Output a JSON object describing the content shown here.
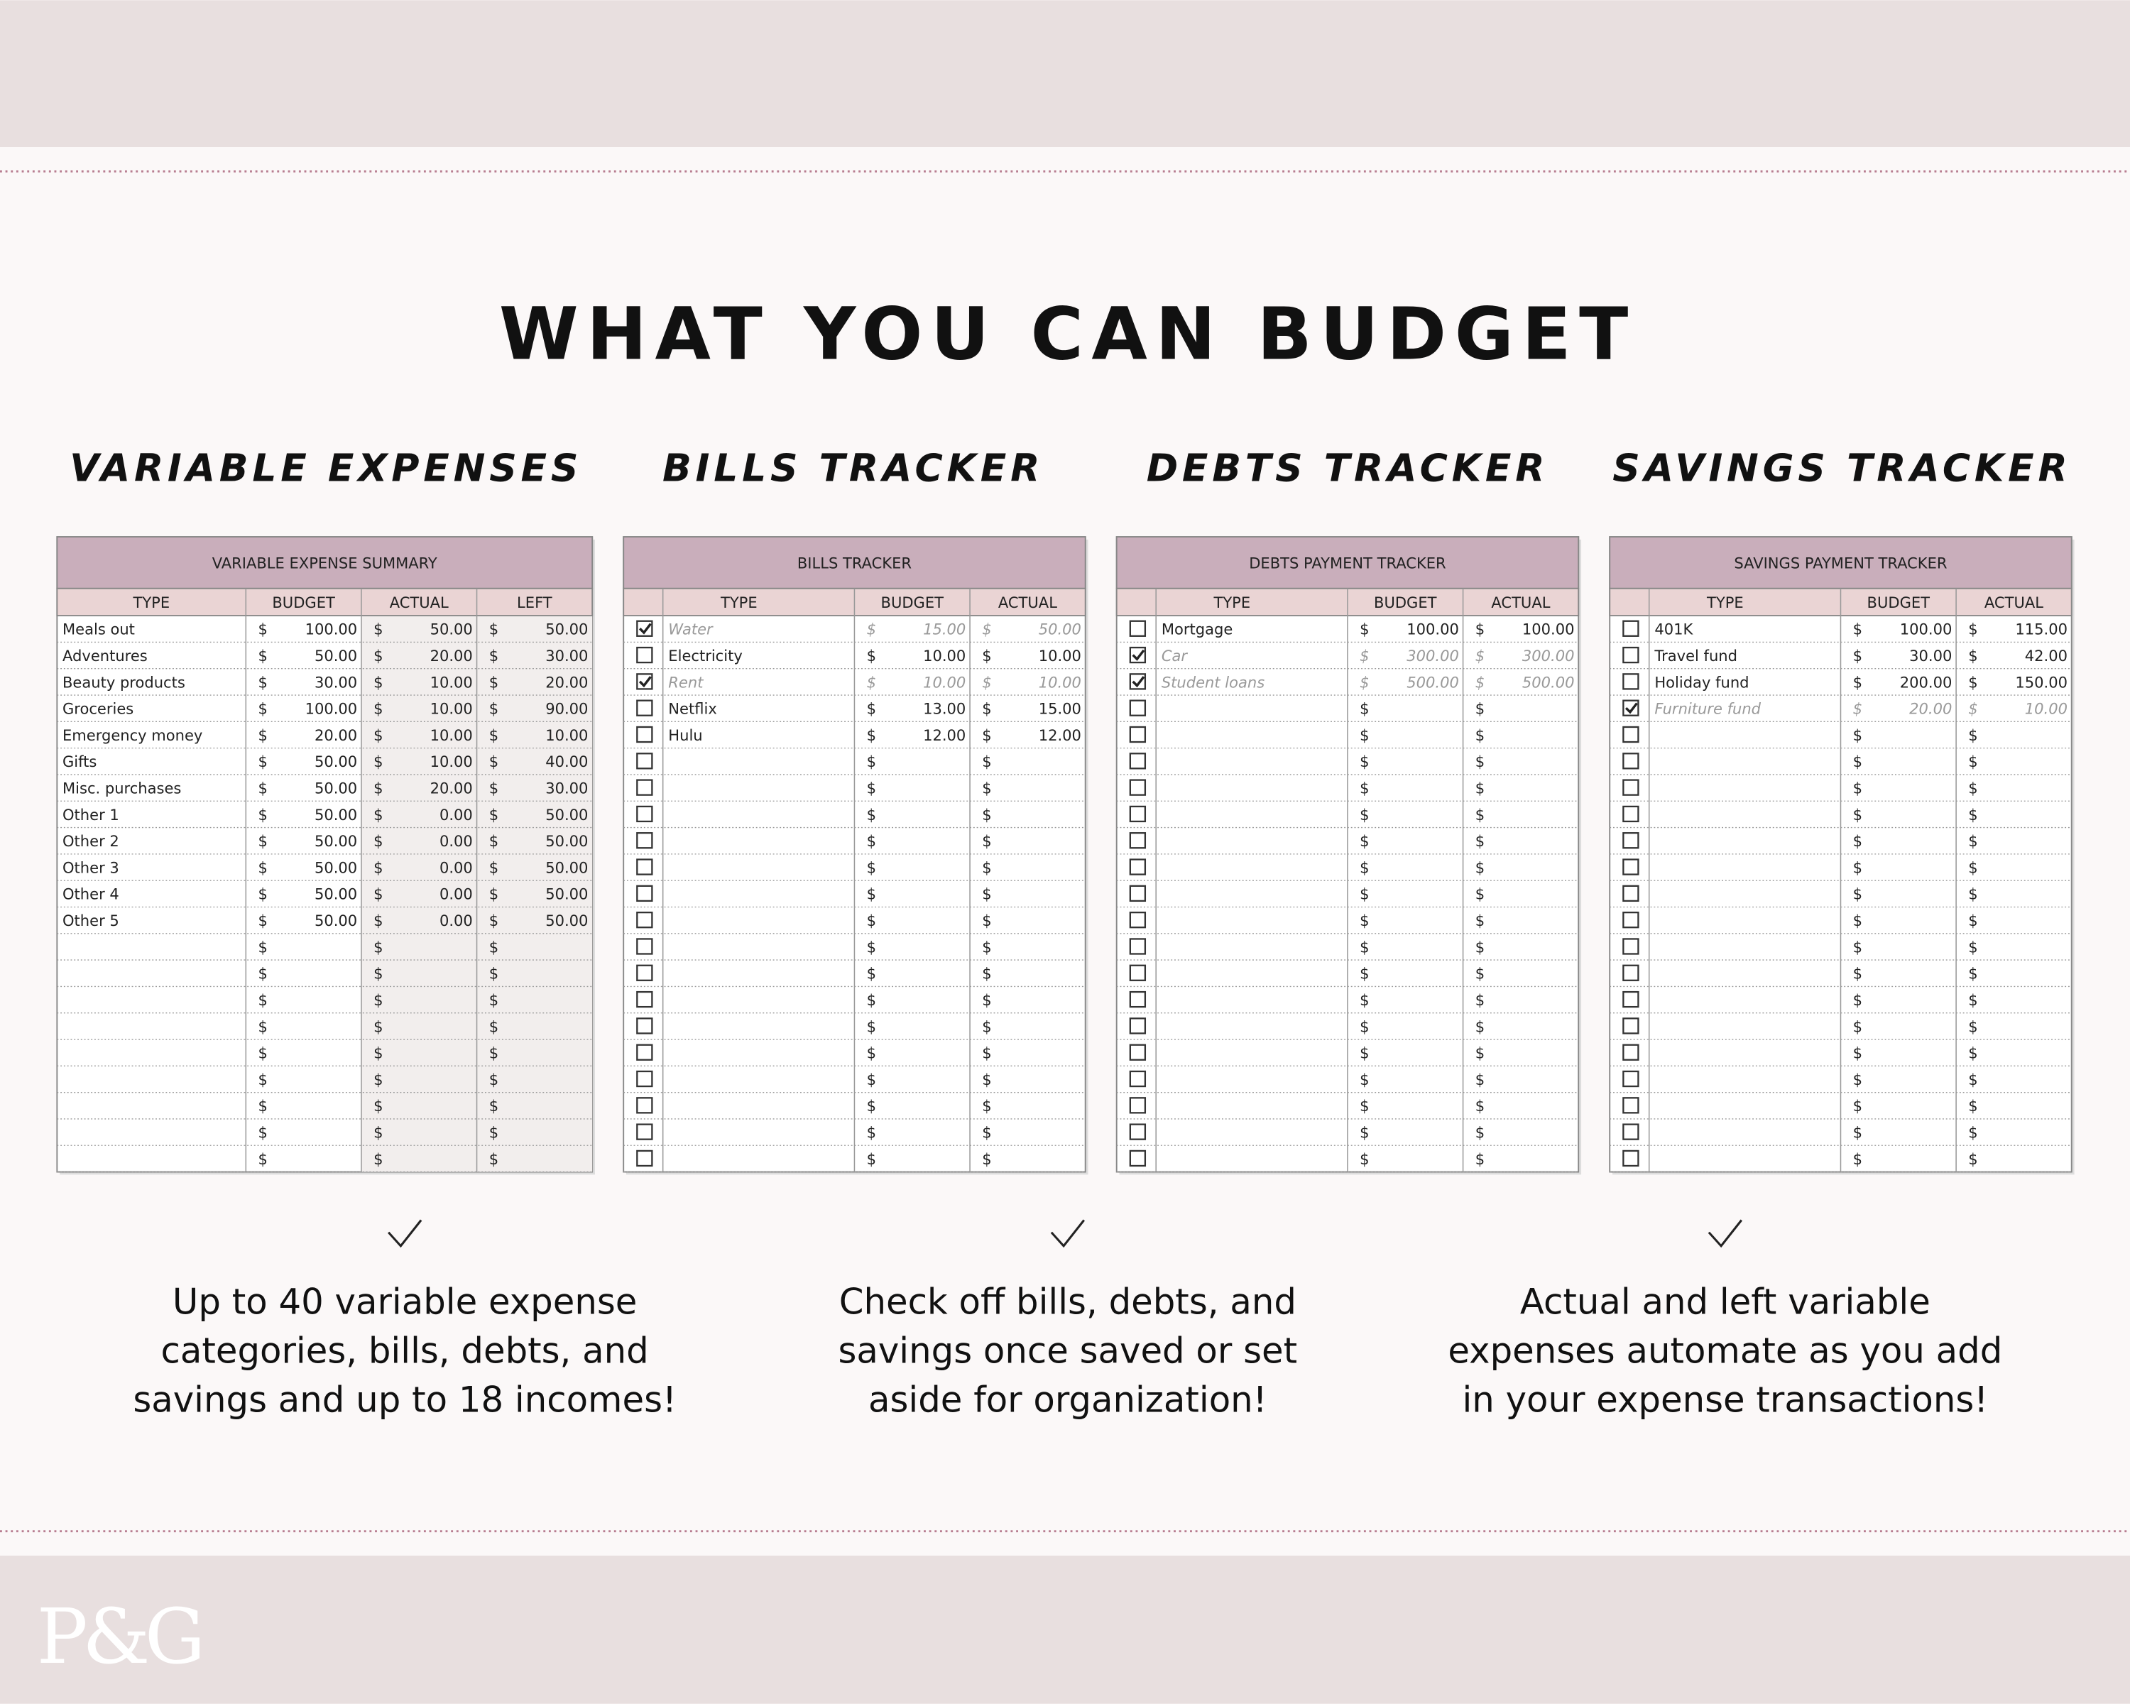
{
  "header": {
    "title": "WHAT YOU CAN BUDGET"
  },
  "sections": [
    {
      "title": "VARIABLE EXPENSES",
      "table": {
        "title": "VARIABLE EXPENSE SUMMARY",
        "columns": [
          "TYPE",
          "BUDGET",
          "ACTUAL",
          "LEFT"
        ],
        "checkboxes": false,
        "currency": "$",
        "rows": [
          {
            "cells": [
              "Meals out",
              "100.00",
              "50.00",
              "50.00"
            ]
          },
          {
            "cells": [
              "Adventures",
              "50.00",
              "20.00",
              "30.00"
            ]
          },
          {
            "cells": [
              "Beauty products",
              "30.00",
              "10.00",
              "20.00"
            ]
          },
          {
            "cells": [
              "Groceries",
              "100.00",
              "10.00",
              "90.00"
            ]
          },
          {
            "cells": [
              "Emergency money",
              "20.00",
              "10.00",
              "10.00"
            ]
          },
          {
            "cells": [
              "Gifts",
              "50.00",
              "10.00",
              "40.00"
            ]
          },
          {
            "cells": [
              "Misc. purchases",
              "50.00",
              "20.00",
              "30.00"
            ]
          },
          {
            "cells": [
              "Other 1",
              "50.00",
              "0.00",
              "50.00"
            ]
          },
          {
            "cells": [
              "Other 2",
              "50.00",
              "0.00",
              "50.00"
            ]
          },
          {
            "cells": [
              "Other 3",
              "50.00",
              "0.00",
              "50.00"
            ]
          },
          {
            "cells": [
              "Other 4",
              "50.00",
              "0.00",
              "50.00"
            ]
          },
          {
            "cells": [
              "Other 5",
              "50.00",
              "0.00",
              "50.00"
            ]
          }
        ]
      }
    },
    {
      "title": "BILLS TRACKER",
      "table": {
        "title": "BILLS TRACKER",
        "columns": [
          "TYPE",
          "BUDGET",
          "ACTUAL"
        ],
        "checkboxes": true,
        "currency": "$",
        "rows": [
          {
            "checked": true,
            "cells": [
              "Water",
              "15.00",
              "50.00"
            ]
          },
          {
            "checked": false,
            "cells": [
              "Electricity",
              "10.00",
              "10.00"
            ]
          },
          {
            "checked": true,
            "cells": [
              "Rent",
              "10.00",
              "10.00"
            ]
          },
          {
            "checked": false,
            "cells": [
              "Netflix",
              "13.00",
              "15.00"
            ]
          },
          {
            "checked": false,
            "cells": [
              "Hulu",
              "12.00",
              "12.00"
            ]
          }
        ]
      }
    },
    {
      "title": "DEBTS TRACKER",
      "table": {
        "title": "DEBTS PAYMENT TRACKER",
        "columns": [
          "TYPE",
          "BUDGET",
          "ACTUAL"
        ],
        "checkboxes": true,
        "currency": "$",
        "rows": [
          {
            "checked": false,
            "cells": [
              "Mortgage",
              "100.00",
              "100.00"
            ]
          },
          {
            "checked": true,
            "cells": [
              "Car",
              "300.00",
              "300.00"
            ]
          },
          {
            "checked": true,
            "cells": [
              "Student loans",
              "500.00",
              "500.00"
            ]
          }
        ]
      }
    },
    {
      "title": "SAVINGS TRACKER",
      "table": {
        "title": "SAVINGS PAYMENT TRACKER",
        "columns": [
          "TYPE",
          "BUDGET",
          "ACTUAL"
        ],
        "checkboxes": true,
        "currency": "$",
        "rows": [
          {
            "checked": false,
            "cells": [
              "401K",
              "100.00",
              "115.00"
            ]
          },
          {
            "checked": false,
            "cells": [
              "Travel fund",
              "30.00",
              "42.00"
            ]
          },
          {
            "checked": false,
            "cells": [
              "Holiday fund",
              "200.00",
              "150.00"
            ]
          },
          {
            "checked": true,
            "cells": [
              "Furniture fund",
              "20.00",
              "10.00"
            ]
          }
        ]
      }
    }
  ],
  "features": [
    {
      "lines": [
        "Up to 40 variable expense",
        "categories, bills, debts, and",
        "savings and up to 18 incomes!"
      ]
    },
    {
      "lines": [
        "Check off bills, debts, and",
        "savings once saved or set",
        "aside for organization!"
      ]
    },
    {
      "lines": [
        "Actual and left variable",
        "expenses automate as you add",
        "in your expense transactions!"
      ]
    }
  ],
  "footer": {
    "logo": "P&G"
  }
}
